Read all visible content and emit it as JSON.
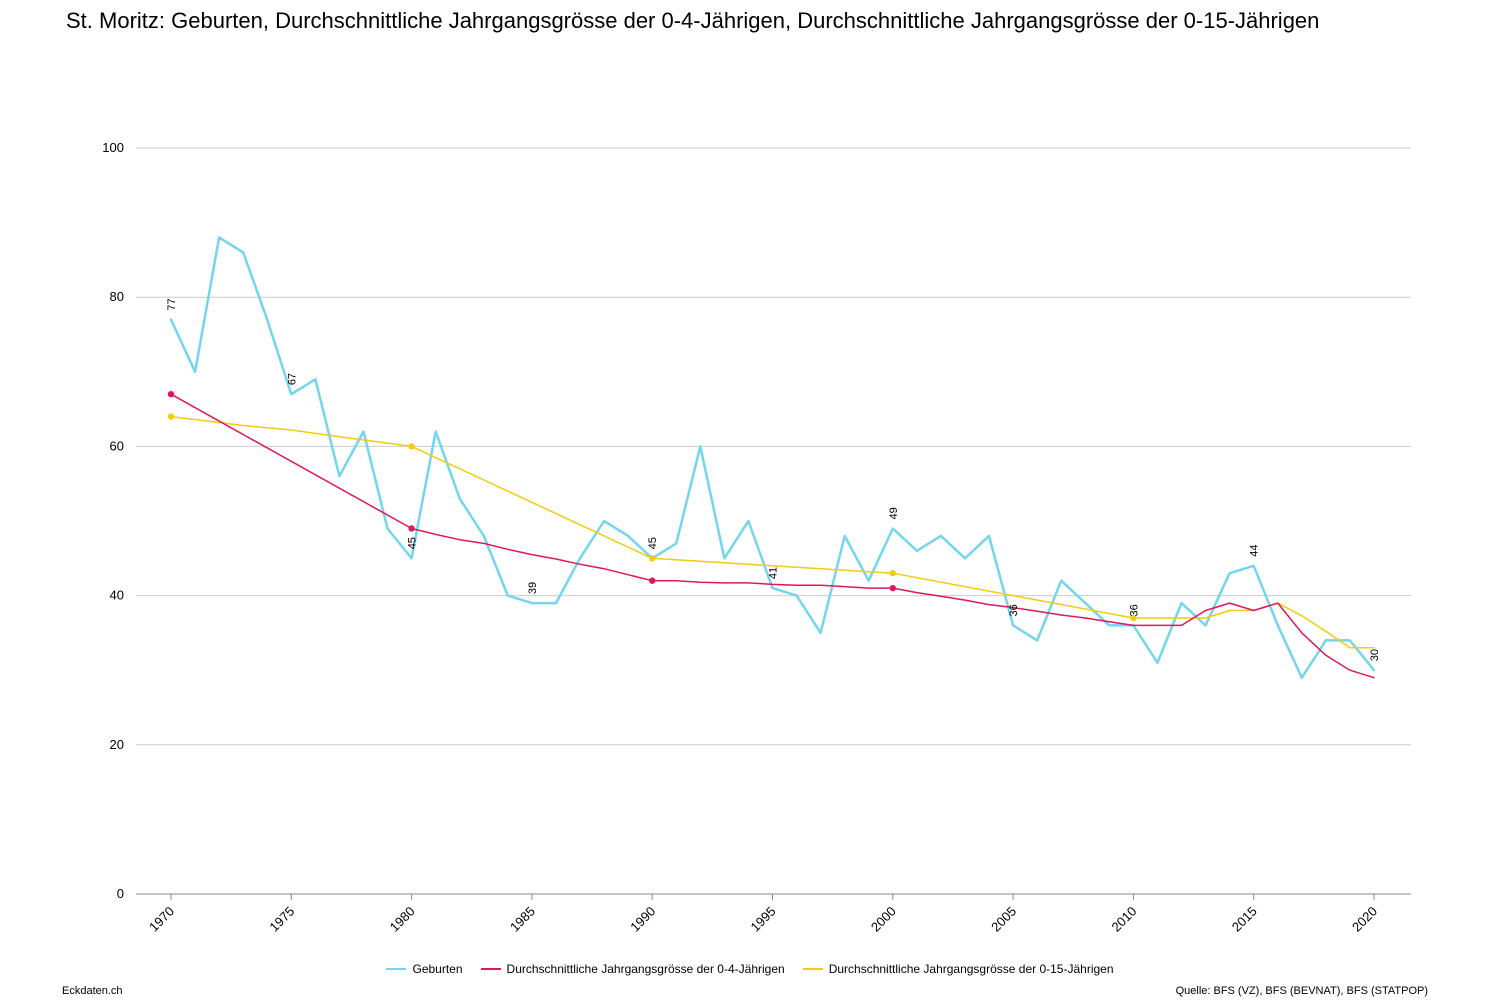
{
  "title": "St. Moritz: Geburten, Durchschnittliche Jahrgangsgrösse der 0-4-Jährigen, Durchschnittliche Jahrgangsgrösse der 0-15-Jährigen",
  "footer": {
    "left": "Eckdaten.ch",
    "right": "Quelle: BFS (VZ), BFS (BEVNAT), BFS (STATPOP)"
  },
  "chart_data": {
    "type": "line",
    "xlim": [
      1970,
      2020
    ],
    "ylim": [
      0,
      100
    ],
    "x_ticks": [
      1970,
      1975,
      1980,
      1985,
      1990,
      1995,
      2000,
      2005,
      2010,
      2015,
      2020
    ],
    "y_ticks": [
      0,
      20,
      40,
      60,
      80,
      100
    ],
    "grid": true,
    "legend_position": "bottom",
    "series": [
      {
        "name": "Geburten",
        "color": "#74d5ef",
        "x": [
          1970,
          1971,
          1972,
          1973,
          1974,
          1975,
          1976,
          1977,
          1978,
          1979,
          1980,
          1981,
          1982,
          1983,
          1984,
          1985,
          1986,
          1987,
          1988,
          1989,
          1990,
          1991,
          1992,
          1993,
          1994,
          1995,
          1996,
          1997,
          1998,
          1999,
          2000,
          2001,
          2002,
          2003,
          2004,
          2005,
          2006,
          2007,
          2008,
          2009,
          2010,
          2011,
          2012,
          2013,
          2014,
          2015,
          2016,
          2017,
          2018,
          2019,
          2020
        ],
        "y": [
          77,
          70,
          88,
          86,
          77,
          67,
          69,
          56,
          62,
          49,
          45,
          62,
          53,
          48,
          40,
          39,
          39,
          45,
          50,
          48,
          45,
          47,
          60,
          45,
          50,
          41,
          40,
          35,
          48,
          42,
          49,
          46,
          48,
          45,
          48,
          36,
          34,
          42,
          39,
          36,
          36,
          31,
          39,
          36,
          43,
          44,
          36,
          29,
          34,
          34,
          30
        ],
        "labels": [
          {
            "x": 1970,
            "text": "77"
          },
          {
            "x": 1975,
            "text": "67"
          },
          {
            "x": 1980,
            "text": "45"
          },
          {
            "x": 1985,
            "text": "39"
          },
          {
            "x": 1990,
            "text": "45"
          },
          {
            "x": 1995,
            "text": "41"
          },
          {
            "x": 2000,
            "text": "49"
          },
          {
            "x": 2005,
            "text": "36"
          },
          {
            "x": 2010,
            "text": "36"
          },
          {
            "x": 2015,
            "text": "44"
          },
          {
            "x": 2020,
            "text": "30"
          }
        ]
      },
      {
        "name": "Durchschnittliche Jahrgangsgrösse der 0-4-Jährigen",
        "color": "#e0185a",
        "x": [
          1970,
          1980,
          1981,
          1982,
          1983,
          1984,
          1985,
          1986,
          1987,
          1988,
          1989,
          1990,
          1991,
          1992,
          1993,
          1994,
          1995,
          1996,
          1997,
          1998,
          1999,
          2000,
          2001,
          2002,
          2003,
          2004,
          2005,
          2006,
          2007,
          2008,
          2009,
          2010,
          2011,
          2012,
          2013,
          2014,
          2015,
          2016,
          2017,
          2018,
          2019,
          2020
        ],
        "y": [
          67,
          49,
          48.2,
          47.5,
          47,
          46.2,
          45.5,
          44.9,
          44.2,
          43.6,
          42.8,
          42,
          42,
          41.8,
          41.7,
          41.7,
          41.5,
          41.4,
          41.4,
          41.2,
          41,
          41,
          40.4,
          39.9,
          39.4,
          38.8,
          38.4,
          37.9,
          37.4,
          37,
          36.5,
          36,
          36,
          36,
          38,
          39,
          38,
          39,
          35,
          32,
          30,
          29
        ],
        "markers": [
          1970,
          1980,
          1990,
          2000
        ]
      },
      {
        "name": "Durchschnittliche Jahrgangsgrösse der 0-15-Jährigen",
        "color": "#f3cc0c",
        "x": [
          1970,
          1973,
          1975,
          1977,
          1980,
          1990,
          1993,
          1996,
          2000,
          2005,
          2010,
          2011,
          2012,
          2013,
          2014,
          2015,
          2016,
          2017,
          2018,
          2019,
          2020
        ],
        "y": [
          64,
          62.8,
          62.2,
          61.3,
          60,
          45,
          44.4,
          43.8,
          43,
          40,
          37,
          37,
          37,
          37,
          38,
          38,
          39,
          37.3,
          35.2,
          33,
          33
        ],
        "markers": [
          1970,
          1980,
          1990,
          2000,
          2010
        ]
      }
    ]
  }
}
